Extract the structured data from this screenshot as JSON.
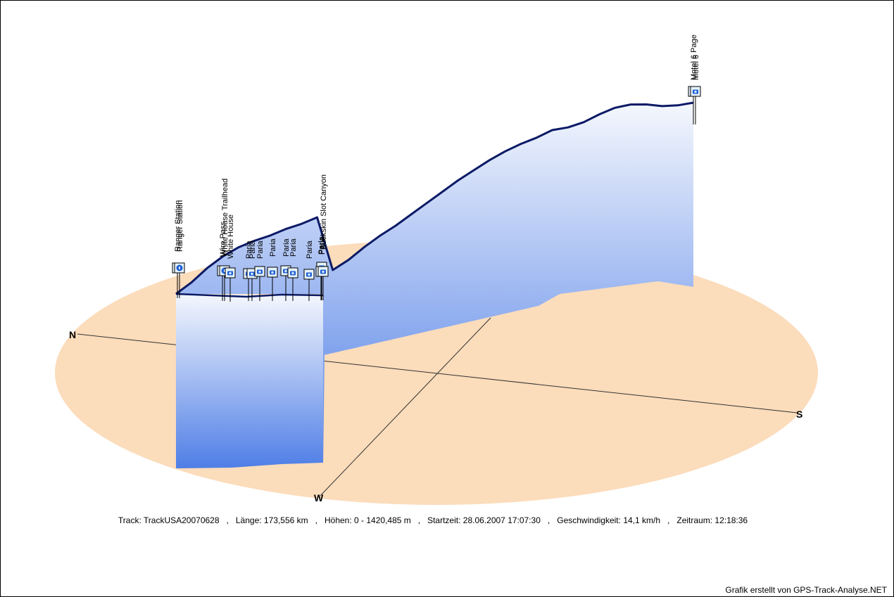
{
  "chart_data": {
    "type": "area",
    "style": "3d-elevation-profile",
    "compass": {
      "north": "N",
      "south": "S",
      "west": "W"
    },
    "colors": {
      "ground": "#fbdcbb",
      "profile_top": "#f4f7fd",
      "profile_bottom": "#4f7ee6",
      "track_line": "#0b1a66",
      "axes": "#333333"
    },
    "series": [
      {
        "values": [
          0,
          90,
          200,
          290,
          360,
          410,
          450,
          500,
          540,
          590,
          640,
          690,
          760,
          820,
          870,
          930,
          990,
          1050,
          1110,
          1160,
          1210,
          1250,
          1280,
          1300,
          1295,
          1275,
          1300,
          1345,
          1380,
          1390,
          1375,
          1355,
          1380,
          1420
        ]
      }
    ],
    "waypoints": [
      {
        "label": "Ranger Station",
        "icon": "info-icon"
      },
      {
        "label": "Ranger Station",
        "icon": "info-icon"
      },
      {
        "label": "Wire Pass",
        "icon": "camera-icon"
      },
      {
        "label": "White House Trailhead",
        "icon": "info-icon"
      },
      {
        "label": "White House",
        "icon": "camera-icon"
      },
      {
        "label": "Paria",
        "icon": "camera-icon"
      },
      {
        "label": "Paria",
        "icon": "camera-icon"
      },
      {
        "label": "Paria",
        "icon": "camera-icon"
      },
      {
        "label": "Paria",
        "icon": "camera-icon"
      },
      {
        "label": "Paria",
        "icon": "camera-icon"
      },
      {
        "label": "Paria",
        "icon": "camera-icon"
      },
      {
        "label": "Paria",
        "icon": "camera-icon"
      },
      {
        "label": "Paria",
        "icon": "camera-icon"
      },
      {
        "label": "Paria",
        "icon": "camera-icon"
      },
      {
        "label": "Buckskin Slot Canyon",
        "icon": "camera-icon"
      },
      {
        "label": "Motel 6 Page",
        "icon": "camera-icon"
      },
      {
        "label": "Motel 6",
        "icon": "camera-icon"
      }
    ]
  },
  "info": {
    "track_label": "Track:",
    "track_value": "TrackUSA20070628",
    "length_label": "Länge:",
    "length_value": "173,556 km",
    "height_label": "Höhen:",
    "height_value": "0 - 1420,485 m",
    "start_label": "Startzeit:",
    "start_value": "28.06.2007 17:07:30",
    "speed_label": "Geschwindigkeit:",
    "speed_value": "14,1 km/h",
    "duration_label": "Zeitraum:",
    "duration_value": "12:18:36"
  },
  "footer": "Grafik erstellt von GPS-Track-Analyse.NET"
}
